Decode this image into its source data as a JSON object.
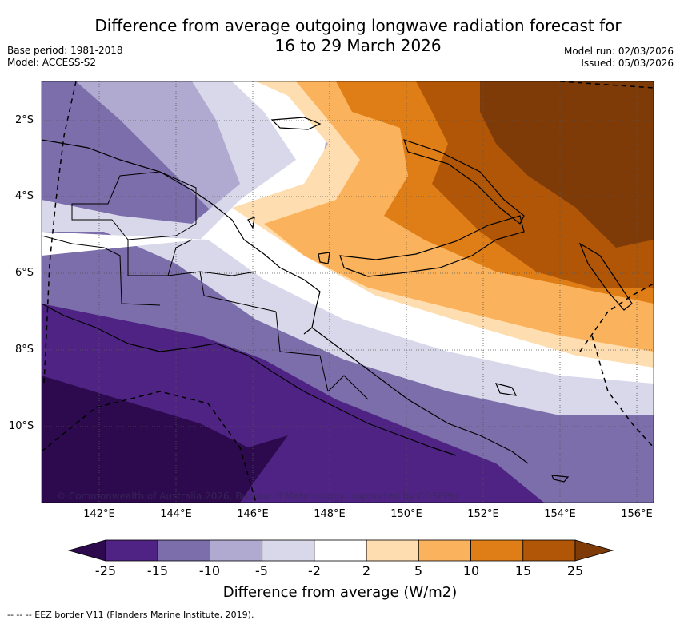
{
  "title_line1": "Difference from average outgoing longwave radiation forecast for",
  "title_line2": "16 to 29 March 2026",
  "base_period": "Base period: 1981-2018",
  "model": "Model: ACCESS-S2",
  "model_run": "Model run: 02/03/2026",
  "issued": "Issued: 05/03/2026",
  "lat_labels": [
    "2°S",
    "4°S",
    "6°S",
    "8°S",
    "10°S"
  ],
  "lon_labels": [
    "142°E",
    "144°E",
    "146°E",
    "148°E",
    "150°E",
    "152°E",
    "154°E",
    "156°E"
  ],
  "copyright": "© Commonwealth of Australia 2026, Bureau of Meteorology, supported by COSPPac",
  "colorbar": {
    "title": "Difference from average (W/m2)",
    "labels": [
      "-25",
      "-15",
      "-10",
      "-5",
      "-2",
      "2",
      "5",
      "10",
      "15",
      "25"
    ],
    "colors": [
      "#2d0a4e",
      "#4f2384",
      "#7b6eab",
      "#b0a9d0",
      "#d8d8ea",
      "#ffffff",
      "#fedeb0",
      "#fbb25c",
      "#df7e17",
      "#b05606",
      "#7e3b08"
    ]
  },
  "footer": "-- -- -- EEZ border V11 (Flanders Marine Institute, 2019)."
}
